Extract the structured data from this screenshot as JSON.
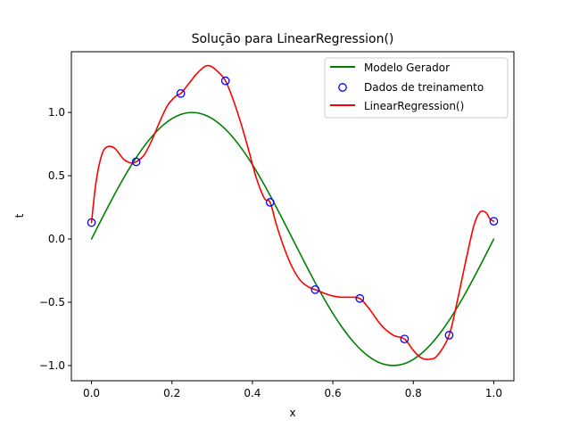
{
  "chart_data": {
    "type": "line",
    "title": "Solução para LinearRegression()",
    "xlabel": "x",
    "ylabel": "t",
    "xlim": [
      -0.05,
      1.05
    ],
    "ylim": [
      -1.12,
      1.48
    ],
    "xticks": [
      0.0,
      0.2,
      0.4,
      0.6,
      0.8,
      1.0
    ],
    "xtick_labels": [
      "0.0",
      "0.2",
      "0.4",
      "0.6",
      "0.8",
      "1.0"
    ],
    "yticks": [
      -1.0,
      -0.5,
      0.0,
      0.5,
      1.0
    ],
    "ytick_labels": [
      "−1.0",
      "−0.5",
      "0.0",
      "0.5",
      "1.0"
    ],
    "legend_position": "top-right",
    "colors": {
      "generator": "#008000",
      "training": "#0000ff",
      "regression": "#ff0000"
    },
    "series": [
      {
        "name": "Modelo Gerador",
        "kind": "line",
        "function": "sin(2*pi*x)",
        "x": [
          0.0,
          0.025,
          0.05,
          0.075,
          0.1,
          0.125,
          0.15,
          0.175,
          0.2,
          0.225,
          0.25,
          0.275,
          0.3,
          0.325,
          0.35,
          0.375,
          0.4,
          0.425,
          0.45,
          0.475,
          0.5,
          0.525,
          0.55,
          0.575,
          0.6,
          0.625,
          0.65,
          0.675,
          0.7,
          0.725,
          0.75,
          0.775,
          0.8,
          0.825,
          0.85,
          0.875,
          0.9,
          0.925,
          0.95,
          0.975,
          1.0
        ],
        "y": [
          0.0,
          0.156,
          0.309,
          0.454,
          0.588,
          0.707,
          0.809,
          0.891,
          0.951,
          0.988,
          1.0,
          0.988,
          0.951,
          0.891,
          0.809,
          0.707,
          0.588,
          0.454,
          0.309,
          0.156,
          0.0,
          -0.156,
          -0.309,
          -0.454,
          -0.588,
          -0.707,
          -0.809,
          -0.891,
          -0.951,
          -0.988,
          -1.0,
          -0.988,
          -0.951,
          -0.891,
          -0.809,
          -0.707,
          -0.588,
          -0.454,
          -0.309,
          -0.156,
          0.0
        ]
      },
      {
        "name": "Dados de treinamento",
        "kind": "scatter",
        "x": [
          0.0,
          0.111,
          0.222,
          0.333,
          0.444,
          0.556,
          0.667,
          0.778,
          0.889,
          1.0
        ],
        "y": [
          0.13,
          0.61,
          1.15,
          1.25,
          0.29,
          -0.4,
          -0.47,
          -0.79,
          -0.76,
          0.14
        ]
      },
      {
        "name": "LinearRegression()",
        "kind": "line",
        "x": [
          0.0,
          0.01,
          0.02,
          0.03,
          0.04,
          0.05,
          0.06,
          0.07,
          0.08,
          0.09,
          0.1,
          0.111,
          0.13,
          0.15,
          0.17,
          0.19,
          0.21,
          0.222,
          0.24,
          0.26,
          0.28,
          0.29,
          0.3,
          0.315,
          0.333,
          0.35,
          0.37,
          0.39,
          0.41,
          0.43,
          0.444,
          0.46,
          0.48,
          0.5,
          0.52,
          0.54,
          0.556,
          0.58,
          0.6,
          0.62,
          0.64,
          0.667,
          0.69,
          0.72,
          0.75,
          0.778,
          0.8,
          0.82,
          0.84,
          0.86,
          0.889,
          0.91,
          0.93,
          0.95,
          0.965,
          0.98,
          0.99,
          1.0
        ],
        "y": [
          0.13,
          0.42,
          0.6,
          0.7,
          0.73,
          0.73,
          0.71,
          0.67,
          0.63,
          0.61,
          0.6,
          0.61,
          0.66,
          0.78,
          0.93,
          1.06,
          1.13,
          1.15,
          1.22,
          1.3,
          1.36,
          1.37,
          1.36,
          1.32,
          1.25,
          1.12,
          0.93,
          0.71,
          0.48,
          0.32,
          0.29,
          0.11,
          -0.08,
          -0.23,
          -0.33,
          -0.38,
          -0.4,
          -0.43,
          -0.45,
          -0.46,
          -0.46,
          -0.47,
          -0.55,
          -0.68,
          -0.76,
          -0.79,
          -0.88,
          -0.94,
          -0.95,
          -0.92,
          -0.76,
          -0.48,
          -0.18,
          0.1,
          0.21,
          0.21,
          0.16,
          0.14
        ]
      }
    ]
  }
}
